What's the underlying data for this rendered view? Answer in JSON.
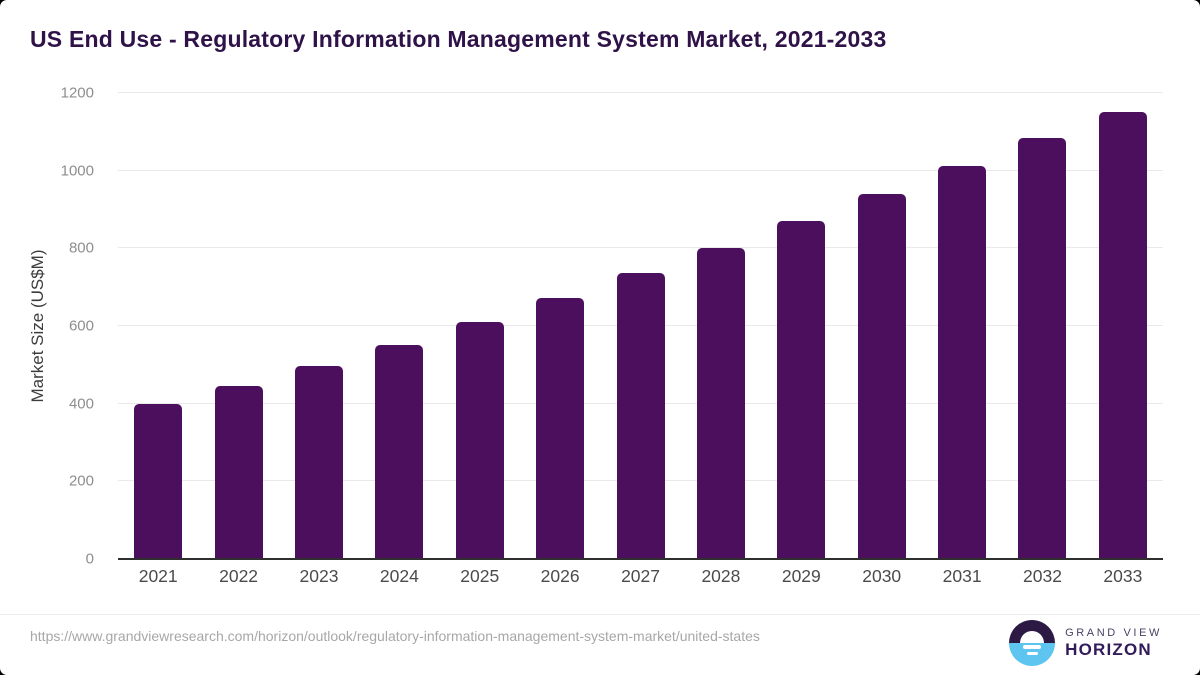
{
  "header": {
    "title": "US End Use - Regulatory Information Management System Market, 2021-2033"
  },
  "chart_data": {
    "type": "bar",
    "title": "US End Use - Regulatory Information Management System Market, 2021-2033",
    "categories": [
      "2021",
      "2022",
      "2023",
      "2024",
      "2025",
      "2026",
      "2027",
      "2028",
      "2029",
      "2030",
      "2031",
      "2032",
      "2033"
    ],
    "values": [
      398,
      445,
      497,
      551,
      611,
      672,
      737,
      802,
      871,
      941,
      1011,
      1083,
      1152
    ],
    "xlabel": "",
    "ylabel": "Market Size (US$M)",
    "ylim": [
      0,
      1200
    ],
    "yticks": [
      0,
      200,
      400,
      600,
      800,
      1000,
      1200
    ],
    "grid": true,
    "legend": "none",
    "bar_color": "#4b0f5e"
  },
  "footer": {
    "source_url": "https://www.grandviewresearch.com/horizon/outlook/regulatory-information-management-system-market/united-states",
    "logo": {
      "line1": "GRAND VIEW",
      "line2": "HORIZON"
    }
  },
  "colors": {
    "bar": "#4b0f5e",
    "title_text": "#2e1248",
    "gridline": "#e9e9e9",
    "axis_line": "#2f2f2f",
    "y_tick_text": "#8e8e8e",
    "x_label_text": "#4b4b4b",
    "url_text": "#a7a7a7",
    "logo_top": "#2c1a45",
    "logo_bottom": "#5ec5f0"
  }
}
